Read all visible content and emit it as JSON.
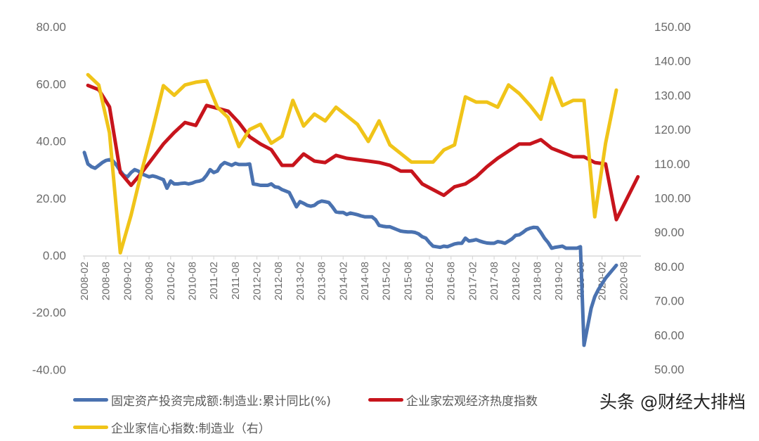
{
  "chart_data": {
    "type": "line",
    "title": "",
    "x_tick_labels": [
      "2008-02",
      "2008-08",
      "2009-02",
      "2009-08",
      "2010-02",
      "2010-08",
      "2011-02",
      "2011-08",
      "2012-02",
      "2012-08",
      "2013-02",
      "2013-08",
      "2014-02",
      "2014-08",
      "2015-02",
      "2015-08",
      "2016-02",
      "2016-08",
      "2017-02",
      "2017-08",
      "2018-02",
      "2018-08",
      "2019-02",
      "2019-08",
      "2020-02",
      "2020-08"
    ],
    "left_axis": {
      "ticks": [
        "80.00",
        "60.00",
        "40.00",
        "20.00",
        "0.00",
        "-20.00",
        "-40.00"
      ],
      "ylim": [
        -40,
        80
      ]
    },
    "right_axis": {
      "ticks": [
        "150.00",
        "140.00",
        "130.00",
        "120.00",
        "110.00",
        "100.00",
        "90.00",
        "80.00",
        "70.00",
        "60.00",
        "50.00"
      ],
      "ylim": [
        50,
        150
      ]
    },
    "grid": false,
    "legend_position": "bottom",
    "series": [
      {
        "name": "固定资产投资完成额:制造业:累计同比(%)",
        "axis": "left",
        "color": "#4a72b0",
        "frequency": "monthly",
        "start": "2008-02",
        "values": [
          36.0,
          32.0,
          31.0,
          30.5,
          31.5,
          32.5,
          33.2,
          33.5,
          33.0,
          31.5,
          29.5,
          28.0,
          27.5,
          29.0,
          30.0,
          29.5,
          28.5,
          28.0,
          27.5,
          27.8,
          27.5,
          27.0,
          26.5,
          23.5,
          26.0,
          25.0,
          25.0,
          25.2,
          25.3,
          25.0,
          25.3,
          25.8,
          26.0,
          26.5,
          28.0,
          30.0,
          29.0,
          29.5,
          31.5,
          32.5,
          32.0,
          31.5,
          32.2,
          31.8,
          31.8,
          31.8,
          32.0,
          25.0,
          24.8,
          24.5,
          24.5,
          24.5,
          25.0,
          24.0,
          23.8,
          23.0,
          22.5,
          22.0,
          19.5,
          17.0,
          18.8,
          18.2,
          17.5,
          17.2,
          17.5,
          18.5,
          19.0,
          18.8,
          18.5,
          17.0,
          15.2,
          15.0,
          15.0,
          14.3,
          14.8,
          14.5,
          14.2,
          13.8,
          13.5,
          13.5,
          13.5,
          12.5,
          10.5,
          10.2,
          10.0,
          10.0,
          9.5,
          9.0,
          8.5,
          8.3,
          8.2,
          8.2,
          8.0,
          7.5,
          6.5,
          6.0,
          4.5,
          3.2,
          3.0,
          2.8,
          3.2,
          3.0,
          3.5,
          4.0,
          4.2,
          4.2,
          6.0,
          5.0,
          5.2,
          5.5,
          5.0,
          4.6,
          4.3,
          4.2,
          4.2,
          4.8,
          4.6,
          4.2,
          5.0,
          5.8,
          7.0,
          7.2,
          8.0,
          9.0,
          9.5,
          9.8,
          9.7,
          8.0,
          6.0,
          4.5,
          2.5,
          2.8,
          3.0,
          3.2,
          2.5,
          2.5,
          2.5,
          2.5,
          3.0,
          -31.5,
          -25.0,
          -18.5,
          -14.5,
          -12.0,
          -10.0,
          -8.0,
          -6.5,
          -5.0,
          -3.5
        ]
      },
      {
        "name": "企业家宏观经济热度指数",
        "axis": "left",
        "color": "#c7141c",
        "frequency": "quarterly",
        "start": "2008-03",
        "values": [
          59.5,
          58.0,
          52.0,
          29.0,
          24.5,
          29.0,
          34.0,
          39.0,
          43.0,
          46.5,
          45.5,
          52.5,
          51.5,
          50.5,
          46.5,
          41.5,
          39.0,
          37.0,
          31.5,
          31.5,
          35.5,
          33.0,
          32.5,
          35.0,
          34.0,
          33.5,
          33.0,
          32.5,
          31.5,
          29.5,
          29.5,
          25.0,
          23.0,
          21.0,
          24.0,
          25.0,
          27.5,
          31.0,
          34.0,
          36.5,
          39.0,
          39.0,
          40.5,
          37.5,
          36.0,
          34.5,
          34.5,
          32.5,
          32.0,
          12.5,
          20.0,
          27.5
        ]
      },
      {
        "name": "企业家信心指数:制造业（右）",
        "axis": "right",
        "color": "#f0c419",
        "frequency": "quarterly",
        "start": "2008-03",
        "values": [
          136.0,
          133.0,
          119.0,
          84.0,
          95.0,
          108.0,
          120.0,
          132.8,
          130.0,
          133.0,
          133.8,
          134.2,
          126.5,
          123.5,
          115.0,
          120.0,
          121.5,
          116.0,
          118.0,
          128.5,
          121.0,
          124.5,
          122.5,
          126.5,
          124.0,
          121.5,
          116.5,
          122.5,
          115.5,
          113.0,
          110.5,
          110.5,
          110.5,
          114.0,
          115.5,
          129.5,
          128.0,
          128.0,
          126.5,
          133.0,
          130.5,
          127.0,
          123.0,
          135.0,
          127.0,
          128.5,
          128.5,
          94.5,
          116.0,
          131.5
        ]
      }
    ]
  },
  "axes": {
    "left_ticks": [
      "80.00",
      "60.00",
      "40.00",
      "20.00",
      "0.00",
      "-20.00",
      "-40.00"
    ],
    "right_ticks": [
      "150.00",
      "140.00",
      "130.00",
      "120.00",
      "110.00",
      "100.00",
      "90.00",
      "80.00",
      "70.00",
      "60.00",
      "50.00"
    ]
  },
  "legend": {
    "items": [
      {
        "label": "固定资产投资完成额:制造业:累计同比(%)",
        "color": "#4a72b0"
      },
      {
        "label": "企业家宏观经济热度指数",
        "color": "#c7141c"
      },
      {
        "label": "企业家信心指数:制造业（右）",
        "color": "#f0c419"
      }
    ]
  },
  "watermark": "头条 @财经大排档"
}
